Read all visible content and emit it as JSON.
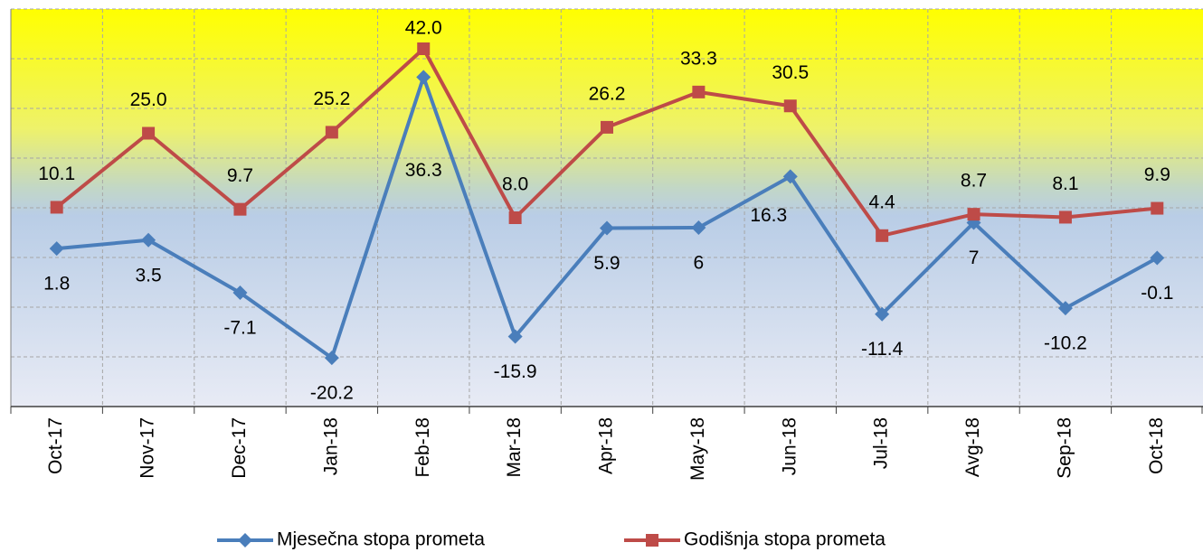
{
  "chart_data": {
    "type": "line",
    "categories": [
      "Oct-17",
      "Nov-17",
      "Dec-17",
      "Jan-18",
      "Feb-18",
      "Mar-18",
      "Apr-18",
      "May-18",
      "Jun-18",
      "Jul-18",
      "Avg-18",
      "Sep-18",
      "Oct-18"
    ],
    "series": [
      {
        "name": "Mjesečna stopa prometa",
        "color": "#4a7ebb",
        "marker": "diamond",
        "values": [
          1.8,
          3.5,
          -7.1,
          -20.2,
          36.3,
          -15.9,
          5.9,
          6.0,
          16.3,
          -11.4,
          7.0,
          -10.2,
          -0.1
        ]
      },
      {
        "name": "Godišnja stopa prometa",
        "color": "#be4b48",
        "marker": "square",
        "values": [
          10.1,
          25.0,
          9.7,
          25.2,
          42.0,
          8.0,
          26.2,
          33.3,
          30.5,
          4.4,
          8.7,
          8.1,
          9.9
        ],
        "value_labels": [
          "10.1",
          "25.0",
          "9.7",
          "25.2",
          "42.0",
          "8.0",
          "26.2",
          "33.3",
          "30.5",
          "4.4",
          "8.7",
          "8.1",
          "9.9"
        ]
      }
    ],
    "ylim": [
      -30,
      50
    ],
    "yticks": [
      -30,
      -20,
      -10,
      0,
      10,
      20,
      30,
      40,
      50
    ],
    "grid": true,
    "legend": "bottom"
  }
}
